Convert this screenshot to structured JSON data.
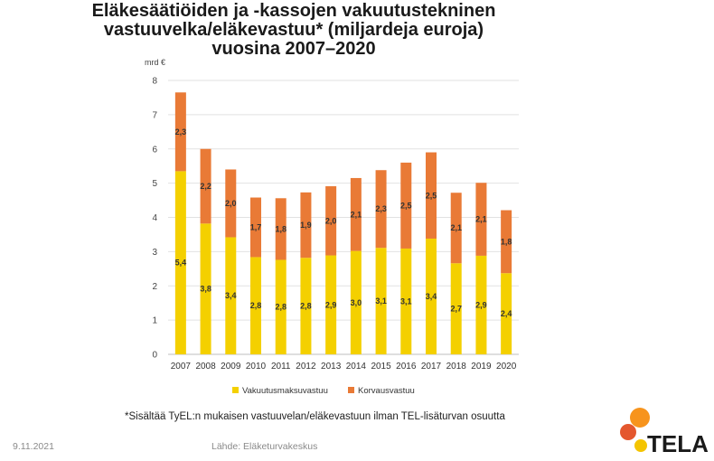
{
  "title_lines": [
    "Eläkesäätiöiden ja -kassojen vakuutustekninen",
    "vastuuvelka/eläkevastuu* (miljardeja euroja)",
    "vuosina 2007–2020"
  ],
  "footnote": "*Sisältää TyEL:n mukaisen vastuuvelan/eläkevastuun ilman TEL-lisäturvan osuutta",
  "footer": {
    "date": "9.11.2021",
    "source": "Lähde: Eläketurvakeskus"
  },
  "logo": {
    "text": "TELA",
    "colors": {
      "orange": "#f7941d",
      "red": "#e4572e",
      "yellow": "#f4c400"
    }
  },
  "chart_data": {
    "type": "bar",
    "stacked": true,
    "unit_label": "mrd €",
    "categories": [
      "2007",
      "2008",
      "2009",
      "2010",
      "2011",
      "2012",
      "2013",
      "2014",
      "2015",
      "2016",
      "2017",
      "2018",
      "2019",
      "2020"
    ],
    "series": [
      {
        "name": "Vakuutusmaksuvastuu",
        "color": "#f4d000",
        "values": [
          5.35,
          3.82,
          3.42,
          2.84,
          2.76,
          2.82,
          2.89,
          3.02,
          3.11,
          3.09,
          3.38,
          2.66,
          2.88,
          2.37
        ],
        "labels": [
          "5,4",
          "3,8",
          "3,4",
          "2,8",
          "2,8",
          "2,8",
          "2,9",
          "3,0",
          "3,1",
          "3,1",
          "3,4",
          "2,7",
          "2,9",
          "2,4"
        ]
      },
      {
        "name": "Korvausvastuu",
        "color": "#e97a36",
        "values": [
          2.3,
          2.18,
          1.98,
          1.74,
          1.8,
          1.91,
          2.02,
          2.13,
          2.27,
          2.51,
          2.52,
          2.06,
          2.13,
          1.84
        ],
        "labels": [
          "2,3",
          "2,2",
          "2,0",
          "1,7",
          "1,8",
          "1,9",
          "2,0",
          "2,1",
          "2,3",
          "2,5",
          "2,5",
          "2,1",
          "2,1",
          "1,8"
        ]
      }
    ],
    "ylim": [
      0,
      8
    ],
    "yticks": [
      "0",
      "1",
      "2",
      "3",
      "4",
      "5",
      "6",
      "7",
      "8"
    ],
    "grid": true,
    "legend_position": "bottom"
  }
}
